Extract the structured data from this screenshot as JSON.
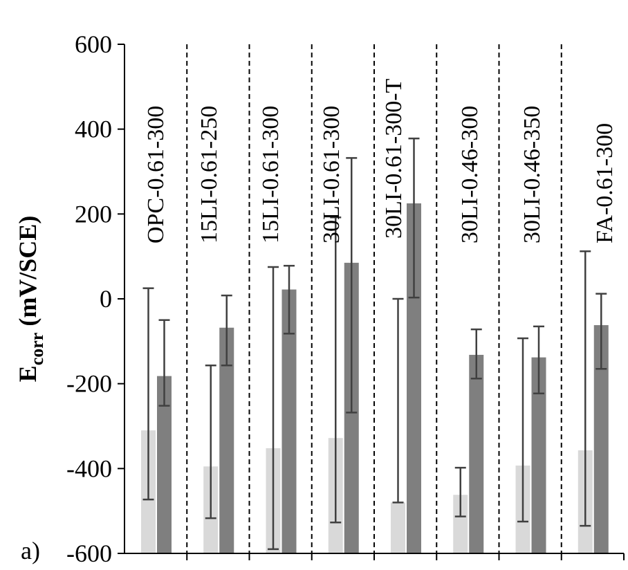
{
  "chart_data": {
    "type": "bar",
    "panel_label": "a)",
    "ylabel_main": "E",
    "ylabel_sub": "corr",
    "ylabel_unit": " (mV/SCE)",
    "ylim": [
      -600,
      600
    ],
    "yticks": [
      600,
      400,
      200,
      0,
      -200,
      -400,
      -600
    ],
    "ytick_labels": [
      "600",
      "400",
      "200",
      "0",
      "-200",
      "-400",
      "-600"
    ],
    "categories": [
      "OPC-0.61-300",
      "15LI-0.61-250",
      "15LI-0.61-300",
      "30LI-0.61-300",
      "30LI-0.61-300-T",
      "30LI-0.46-300",
      "30LI-0.46-350",
      "FA-0.61-300"
    ],
    "series": [
      {
        "color": "#d9d9d9",
        "values": [
          -310,
          -395,
          -352,
          -328,
          -480,
          -462,
          -393,
          -357
        ],
        "err_low": [
          -473,
          -517,
          -590,
          -527,
          -480,
          -513,
          -525,
          -535
        ],
        "err_high": [
          25,
          -157,
          75,
          192,
          0,
          -398,
          -93,
          112
        ]
      },
      {
        "color": "#7f7f7f",
        "values": [
          -182,
          -68,
          22,
          85,
          225,
          -132,
          -138,
          -62
        ],
        "err_low": [
          -252,
          -157,
          -82,
          -268,
          3,
          -188,
          -223,
          -165
        ],
        "err_high": [
          -50,
          8,
          78,
          332,
          378,
          -72,
          -65,
          12
        ]
      }
    ],
    "grid": false,
    "category_separators": "dashed"
  }
}
